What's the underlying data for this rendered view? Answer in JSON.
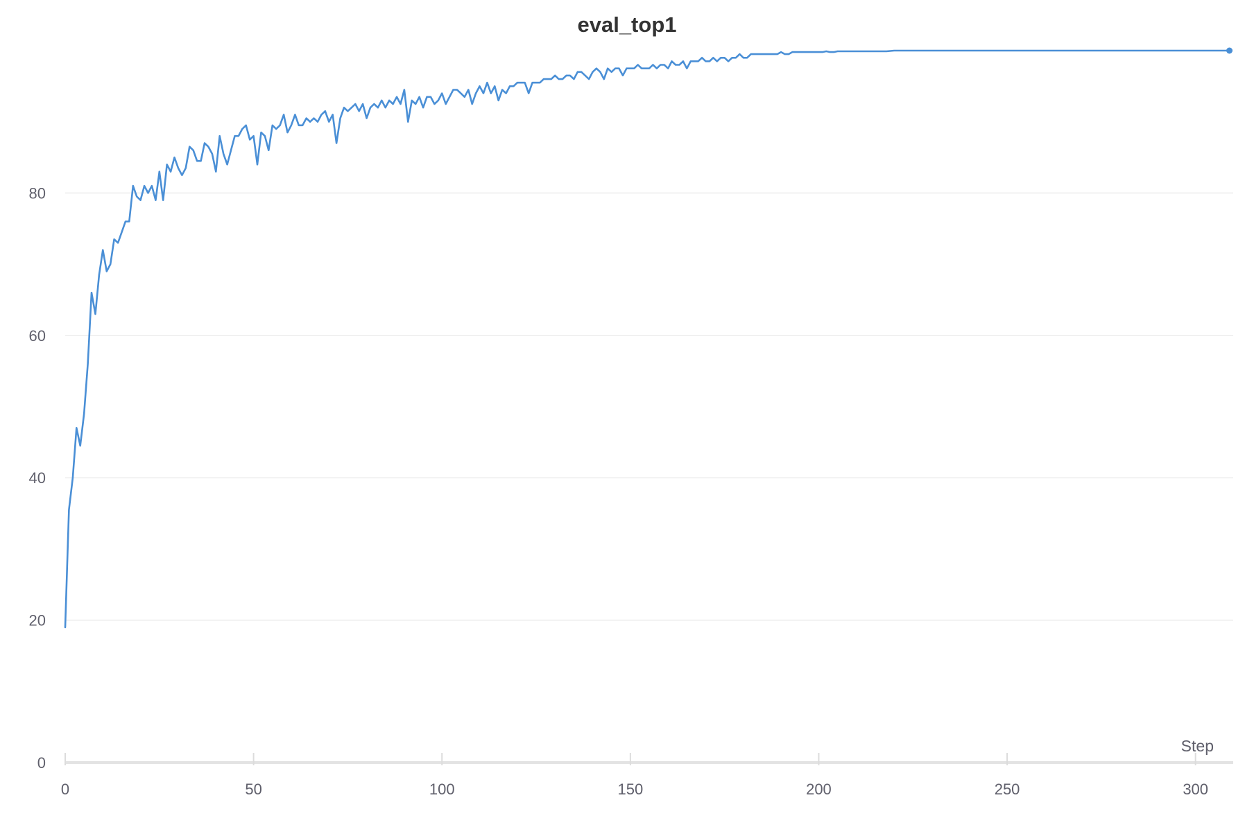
{
  "chart_data": {
    "type": "line",
    "title": "eval_top1",
    "xlabel": "Step",
    "ylabel": "",
    "xlim": [
      0,
      310
    ],
    "ylim": [
      0,
      100
    ],
    "x_ticks": [
      0,
      50,
      100,
      150,
      200,
      250,
      300
    ],
    "y_ticks": [
      0,
      20,
      40,
      60,
      80
    ],
    "grid": true,
    "legend": "none",
    "line_color": "#4a8fd6",
    "series": [
      {
        "values": [
          [
            0,
            19.0
          ],
          [
            1,
            35.5
          ],
          [
            2,
            40.0
          ],
          [
            3,
            47.0
          ],
          [
            4,
            44.5
          ],
          [
            5,
            49.0
          ],
          [
            6,
            56.0
          ],
          [
            7,
            66.0
          ],
          [
            8,
            63.0
          ],
          [
            9,
            68.5
          ],
          [
            10,
            72.0
          ],
          [
            11,
            69.0
          ],
          [
            12,
            70.0
          ],
          [
            13,
            73.5
          ],
          [
            14,
            73.0
          ],
          [
            15,
            74.5
          ],
          [
            16,
            76.0
          ],
          [
            17,
            76.0
          ],
          [
            18,
            81.0
          ],
          [
            19,
            79.5
          ],
          [
            20,
            79.0
          ],
          [
            21,
            81.0
          ],
          [
            22,
            80.0
          ],
          [
            23,
            81.0
          ],
          [
            24,
            79.0
          ],
          [
            25,
            83.0
          ],
          [
            26,
            79.0
          ],
          [
            27,
            84.0
          ],
          [
            28,
            83.0
          ],
          [
            29,
            85.0
          ],
          [
            30,
            83.5
          ],
          [
            31,
            82.5
          ],
          [
            32,
            83.5
          ],
          [
            33,
            86.5
          ],
          [
            34,
            86.0
          ],
          [
            35,
            84.5
          ],
          [
            36,
            84.5
          ],
          [
            37,
            87.0
          ],
          [
            38,
            86.5
          ],
          [
            39,
            85.5
          ],
          [
            40,
            83.0
          ],
          [
            41,
            88.0
          ],
          [
            42,
            85.5
          ],
          [
            43,
            84.0
          ],
          [
            44,
            86.0
          ],
          [
            45,
            88.0
          ],
          [
            46,
            88.0
          ],
          [
            47,
            89.0
          ],
          [
            48,
            89.5
          ],
          [
            49,
            87.5
          ],
          [
            50,
            88.0
          ],
          [
            51,
            84.0
          ],
          [
            52,
            88.5
          ],
          [
            53,
            88.0
          ],
          [
            54,
            86.0
          ],
          [
            55,
            89.5
          ],
          [
            56,
            89.0
          ],
          [
            57,
            89.5
          ],
          [
            58,
            91.0
          ],
          [
            59,
            88.5
          ],
          [
            60,
            89.5
          ],
          [
            61,
            91.0
          ],
          [
            62,
            89.5
          ],
          [
            63,
            89.5
          ],
          [
            64,
            90.5
          ],
          [
            65,
            90.0
          ],
          [
            66,
            90.5
          ],
          [
            67,
            90.0
          ],
          [
            68,
            91.0
          ],
          [
            69,
            91.5
          ],
          [
            70,
            90.0
          ],
          [
            71,
            91.0
          ],
          [
            72,
            87.0
          ],
          [
            73,
            90.5
          ],
          [
            74,
            92.0
          ],
          [
            75,
            91.5
          ],
          [
            76,
            92.0
          ],
          [
            77,
            92.5
          ],
          [
            78,
            91.5
          ],
          [
            79,
            92.5
          ],
          [
            80,
            90.5
          ],
          [
            81,
            92.0
          ],
          [
            82,
            92.5
          ],
          [
            83,
            92.0
          ],
          [
            84,
            93.0
          ],
          [
            85,
            92.0
          ],
          [
            86,
            93.0
          ],
          [
            87,
            92.5
          ],
          [
            88,
            93.5
          ],
          [
            89,
            92.5
          ],
          [
            90,
            94.5
          ],
          [
            91,
            90.0
          ],
          [
            92,
            93.0
          ],
          [
            93,
            92.5
          ],
          [
            94,
            93.5
          ],
          [
            95,
            92.0
          ],
          [
            96,
            93.5
          ],
          [
            97,
            93.5
          ],
          [
            98,
            92.5
          ],
          [
            99,
            93.0
          ],
          [
            100,
            94.0
          ],
          [
            101,
            92.5
          ],
          [
            102,
            93.5
          ],
          [
            103,
            94.5
          ],
          [
            104,
            94.5
          ],
          [
            105,
            94.0
          ],
          [
            106,
            93.5
          ],
          [
            107,
            94.5
          ],
          [
            108,
            92.5
          ],
          [
            109,
            94.0
          ],
          [
            110,
            95.0
          ],
          [
            111,
            94.0
          ],
          [
            112,
            95.5
          ],
          [
            113,
            94.0
          ],
          [
            114,
            95.0
          ],
          [
            115,
            93.0
          ],
          [
            116,
            94.5
          ],
          [
            117,
            94.0
          ],
          [
            118,
            95.0
          ],
          [
            119,
            95.0
          ],
          [
            120,
            95.5
          ],
          [
            121,
            95.5
          ],
          [
            122,
            95.5
          ],
          [
            123,
            94.0
          ],
          [
            124,
            95.5
          ],
          [
            125,
            95.5
          ],
          [
            126,
            95.5
          ],
          [
            127,
            96.0
          ],
          [
            128,
            96.0
          ],
          [
            129,
            96.0
          ],
          [
            130,
            96.5
          ],
          [
            131,
            96.0
          ],
          [
            132,
            96.0
          ],
          [
            133,
            96.5
          ],
          [
            134,
            96.5
          ],
          [
            135,
            96.0
          ],
          [
            136,
            97.0
          ],
          [
            137,
            97.0
          ],
          [
            138,
            96.5
          ],
          [
            139,
            96.0
          ],
          [
            140,
            97.0
          ],
          [
            141,
            97.5
          ],
          [
            142,
            97.0
          ],
          [
            143,
            96.0
          ],
          [
            144,
            97.5
          ],
          [
            145,
            97.0
          ],
          [
            146,
            97.5
          ],
          [
            147,
            97.5
          ],
          [
            148,
            96.5
          ],
          [
            149,
            97.5
          ],
          [
            150,
            97.5
          ],
          [
            151,
            97.5
          ],
          [
            152,
            98.0
          ],
          [
            153,
            97.5
          ],
          [
            154,
            97.5
          ],
          [
            155,
            97.5
          ],
          [
            156,
            98.0
          ],
          [
            157,
            97.5
          ],
          [
            158,
            98.0
          ],
          [
            159,
            98.0
          ],
          [
            160,
            97.5
          ],
          [
            161,
            98.5
          ],
          [
            162,
            98.0
          ],
          [
            163,
            98.0
          ],
          [
            164,
            98.5
          ],
          [
            165,
            97.5
          ],
          [
            166,
            98.5
          ],
          [
            167,
            98.5
          ],
          [
            168,
            98.5
          ],
          [
            169,
            99.0
          ],
          [
            170,
            98.5
          ],
          [
            171,
            98.5
          ],
          [
            172,
            99.0
          ],
          [
            173,
            98.5
          ],
          [
            174,
            99.0
          ],
          [
            175,
            99.0
          ],
          [
            176,
            98.5
          ],
          [
            177,
            99.0
          ],
          [
            178,
            99.0
          ],
          [
            179,
            99.5
          ],
          [
            180,
            99.0
          ],
          [
            181,
            99.0
          ],
          [
            182,
            99.5
          ],
          [
            183,
            99.5
          ],
          [
            184,
            99.5
          ],
          [
            185,
            99.5
          ],
          [
            186,
            99.5
          ],
          [
            187,
            99.5
          ],
          [
            188,
            99.5
          ],
          [
            189,
            99.5
          ],
          [
            190,
            99.8
          ],
          [
            191,
            99.5
          ],
          [
            192,
            99.5
          ],
          [
            193,
            99.8
          ],
          [
            194,
            99.8
          ],
          [
            195,
            99.8
          ],
          [
            196,
            99.8
          ],
          [
            197,
            99.8
          ],
          [
            198,
            99.8
          ],
          [
            199,
            99.8
          ],
          [
            200,
            99.8
          ],
          [
            201,
            99.8
          ],
          [
            202,
            99.9
          ],
          [
            203,
            99.8
          ],
          [
            204,
            99.8
          ],
          [
            205,
            99.9
          ],
          [
            206,
            99.9
          ],
          [
            207,
            99.9
          ],
          [
            208,
            99.9
          ],
          [
            209,
            99.9
          ],
          [
            210,
            99.9
          ],
          [
            212,
            99.9
          ],
          [
            214,
            99.9
          ],
          [
            216,
            99.9
          ],
          [
            218,
            99.9
          ],
          [
            220,
            100.0
          ],
          [
            225,
            100.0
          ],
          [
            230,
            100.0
          ],
          [
            240,
            100.0
          ],
          [
            250,
            100.0
          ],
          [
            260,
            100.0
          ],
          [
            270,
            100.0
          ],
          [
            280,
            100.0
          ],
          [
            290,
            100.0
          ],
          [
            300,
            100.0
          ],
          [
            309,
            100.0
          ]
        ]
      }
    ]
  }
}
